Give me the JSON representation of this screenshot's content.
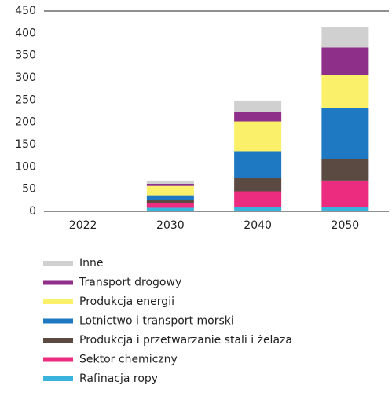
{
  "chart_data": {
    "type": "stacked_bar",
    "categories": [
      "2022",
      "2030",
      "2040",
      "2050"
    ],
    "series": [
      {
        "name": "Rafinacja ropy",
        "color": "#3ab4dc",
        "values": [
          0,
          8,
          10,
          9
        ]
      },
      {
        "name": "Sektor chemiczny",
        "color": "#ec2d7f",
        "values": [
          0,
          10,
          35,
          60
        ]
      },
      {
        "name": "Produkcja i przetwarzanie stali i żelaza",
        "color": "#5b4a42",
        "values": [
          0,
          7,
          30,
          48
        ]
      },
      {
        "name": "Lotnictwo i transport morski",
        "color": "#1e78c2",
        "values": [
          0,
          11,
          60,
          115
        ]
      },
      {
        "name": "Produkcja energii",
        "color": "#faf06a",
        "values": [
          0,
          21,
          67,
          74
        ]
      },
      {
        "name": "Transport drogowy",
        "color": "#8e2f8a",
        "values": [
          0,
          5,
          21,
          62
        ]
      },
      {
        "name": "Inne",
        "color": "#d0d0d0",
        "values": [
          0,
          7,
          26,
          46
        ]
      }
    ],
    "ylim": [
      0,
      450
    ],
    "yticks": [
      0,
      50,
      100,
      150,
      200,
      250,
      300,
      350,
      400,
      450
    ],
    "grid": false
  }
}
